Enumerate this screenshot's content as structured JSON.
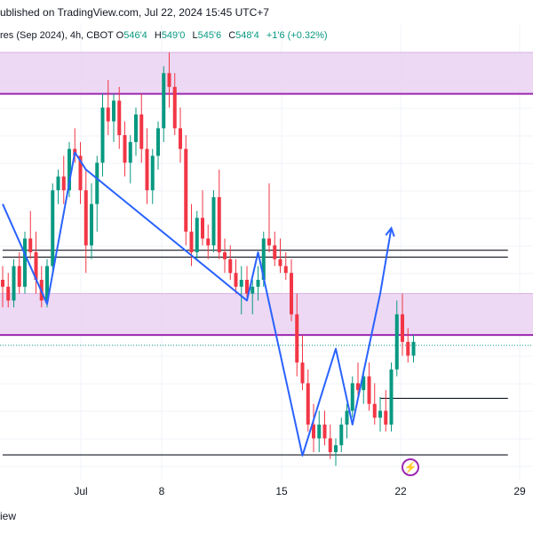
{
  "header": {
    "published_text": "ublished on TradingView.com, Jul 22, 2024 15:45 UTC+7"
  },
  "legend": {
    "symbol_text": "res (Sep 2024), 4h, CBOT",
    "open_label": "O",
    "open_value": "546'4",
    "high_label": "H",
    "high_value": "549'0",
    "low_label": "L",
    "low_value": "545'6",
    "close_label": "C",
    "close_value": "548'4",
    "change": "+1'6 (+0.32%)"
  },
  "footer": {
    "partial_text": "iew"
  },
  "colors": {
    "up": "#089981",
    "down": "#f23645",
    "zone_fill": "#e8d0f0",
    "zone_line": "#9c27b0",
    "wave": "#2962ff",
    "level_line": "#131722",
    "dotted": "#089981"
  },
  "icons": {
    "flash": "lightning-icon"
  },
  "chart_data": {
    "type": "candlestick",
    "x_ticks": [
      "Jul",
      "8",
      "15",
      "22",
      "29"
    ],
    "price_range": [
      506,
      572
    ],
    "zones": [
      {
        "from": 562,
        "to": 568
      },
      {
        "from": 527,
        "to": 533
      }
    ],
    "levels": [
      {
        "price": 539.3,
        "from_index": 0,
        "to_index": 91
      },
      {
        "price": 538.3,
        "from_index": 0,
        "to_index": 91
      },
      {
        "price": 517.8,
        "from_index": 68,
        "to_index": 91
      },
      {
        "price": 509.6,
        "from_index": 0,
        "to_index": 91
      }
    ],
    "last_price_line": 525.5,
    "wave_points": [
      {
        "i": 0,
        "p": 546
      },
      {
        "i": 8,
        "p": 531.5
      },
      {
        "i": 13,
        "p": 553.5
      },
      {
        "i": 15,
        "p": 551
      },
      {
        "i": 44,
        "p": 532
      },
      {
        "i": 46,
        "p": 539
      },
      {
        "i": 54,
        "p": 509.5
      },
      {
        "i": 60,
        "p": 525
      },
      {
        "i": 63,
        "p": 514
      },
      {
        "i": 68,
        "p": 533
      },
      {
        "i": 70,
        "p": 542.5
      }
    ],
    "candles": [
      {
        "o": 535,
        "h": 537,
        "l": 531,
        "c": 534
      },
      {
        "o": 534,
        "h": 536,
        "l": 531,
        "c": 532
      },
      {
        "o": 532,
        "h": 538,
        "l": 531,
        "c": 537
      },
      {
        "o": 537,
        "h": 539,
        "l": 533,
        "c": 534
      },
      {
        "o": 534,
        "h": 542,
        "l": 533,
        "c": 541
      },
      {
        "o": 541,
        "h": 545,
        "l": 538,
        "c": 539
      },
      {
        "o": 539,
        "h": 542,
        "l": 533,
        "c": 535
      },
      {
        "o": 535,
        "h": 537,
        "l": 531,
        "c": 532
      },
      {
        "o": 532,
        "h": 538,
        "l": 531,
        "c": 537
      },
      {
        "o": 537,
        "h": 549,
        "l": 536,
        "c": 548
      },
      {
        "o": 548,
        "h": 551,
        "l": 546,
        "c": 550
      },
      {
        "o": 550,
        "h": 553,
        "l": 546,
        "c": 548
      },
      {
        "o": 548,
        "h": 555,
        "l": 547,
        "c": 554
      },
      {
        "o": 554,
        "h": 557,
        "l": 552,
        "c": 553
      },
      {
        "o": 553,
        "h": 555,
        "l": 546,
        "c": 548
      },
      {
        "o": 548,
        "h": 551,
        "l": 536,
        "c": 540
      },
      {
        "o": 540,
        "h": 549,
        "l": 538,
        "c": 546
      },
      {
        "o": 546,
        "h": 553,
        "l": 542,
        "c": 552
      },
      {
        "o": 552,
        "h": 562,
        "l": 550,
        "c": 560
      },
      {
        "o": 560,
        "h": 564,
        "l": 556,
        "c": 558
      },
      {
        "o": 558,
        "h": 562,
        "l": 555,
        "c": 561
      },
      {
        "o": 561,
        "h": 563,
        "l": 554,
        "c": 556
      },
      {
        "o": 556,
        "h": 558,
        "l": 550,
        "c": 552
      },
      {
        "o": 552,
        "h": 556,
        "l": 549,
        "c": 555
      },
      {
        "o": 555,
        "h": 560,
        "l": 553,
        "c": 559
      },
      {
        "o": 559,
        "h": 562,
        "l": 552,
        "c": 554
      },
      {
        "o": 554,
        "h": 557,
        "l": 546,
        "c": 548
      },
      {
        "o": 548,
        "h": 554,
        "l": 546,
        "c": 553
      },
      {
        "o": 553,
        "h": 558,
        "l": 551,
        "c": 557
      },
      {
        "o": 557,
        "h": 566,
        "l": 555,
        "c": 565
      },
      {
        "o": 565,
        "h": 568,
        "l": 560,
        "c": 563
      },
      {
        "o": 563,
        "h": 565,
        "l": 556,
        "c": 557
      },
      {
        "o": 557,
        "h": 560,
        "l": 552,
        "c": 554
      },
      {
        "o": 554,
        "h": 556,
        "l": 540,
        "c": 542
      },
      {
        "o": 542,
        "h": 546,
        "l": 537,
        "c": 539
      },
      {
        "o": 539,
        "h": 545,
        "l": 538,
        "c": 544
      },
      {
        "o": 544,
        "h": 548,
        "l": 540,
        "c": 541
      },
      {
        "o": 541,
        "h": 543,
        "l": 538,
        "c": 540
      },
      {
        "o": 540,
        "h": 548,
        "l": 539,
        "c": 547
      },
      {
        "o": 547,
        "h": 551,
        "l": 538,
        "c": 539
      },
      {
        "o": 539,
        "h": 541,
        "l": 536,
        "c": 538
      },
      {
        "o": 538,
        "h": 540,
        "l": 535,
        "c": 536
      },
      {
        "o": 536,
        "h": 538,
        "l": 533,
        "c": 534
      },
      {
        "o": 534,
        "h": 537,
        "l": 530,
        "c": 535
      },
      {
        "o": 535,
        "h": 537,
        "l": 532,
        "c": 533
      },
      {
        "o": 533,
        "h": 535,
        "l": 530,
        "c": 534
      },
      {
        "o": 534,
        "h": 537,
        "l": 532,
        "c": 535
      },
      {
        "o": 535,
        "h": 542,
        "l": 534,
        "c": 541
      },
      {
        "o": 541,
        "h": 549,
        "l": 539,
        "c": 540
      },
      {
        "o": 540,
        "h": 542,
        "l": 537,
        "c": 538
      },
      {
        "o": 538,
        "h": 541,
        "l": 536,
        "c": 537
      },
      {
        "o": 537,
        "h": 539,
        "l": 535,
        "c": 536
      },
      {
        "o": 536,
        "h": 538,
        "l": 529,
        "c": 530
      },
      {
        "o": 530,
        "h": 533,
        "l": 521,
        "c": 523
      },
      {
        "o": 523,
        "h": 527,
        "l": 519,
        "c": 520
      },
      {
        "o": 520,
        "h": 522,
        "l": 513,
        "c": 514
      },
      {
        "o": 514,
        "h": 517,
        "l": 510,
        "c": 512
      },
      {
        "o": 512,
        "h": 516,
        "l": 510,
        "c": 514
      },
      {
        "o": 514,
        "h": 516,
        "l": 511,
        "c": 512
      },
      {
        "o": 512,
        "h": 514,
        "l": 509,
        "c": 510
      },
      {
        "o": 510,
        "h": 512,
        "l": 508,
        "c": 511
      },
      {
        "o": 511,
        "h": 515,
        "l": 510,
        "c": 514
      },
      {
        "o": 514,
        "h": 517,
        "l": 512,
        "c": 516
      },
      {
        "o": 516,
        "h": 521,
        "l": 515,
        "c": 520
      },
      {
        "o": 520,
        "h": 523,
        "l": 518,
        "c": 519
      },
      {
        "o": 519,
        "h": 522,
        "l": 517,
        "c": 521
      },
      {
        "o": 521,
        "h": 523,
        "l": 516,
        "c": 517
      },
      {
        "o": 517,
        "h": 520,
        "l": 514,
        "c": 515
      },
      {
        "o": 515,
        "h": 518,
        "l": 513,
        "c": 516
      },
      {
        "o": 516,
        "h": 519,
        "l": 513,
        "c": 514
      },
      {
        "o": 514,
        "h": 523,
        "l": 513,
        "c": 522
      },
      {
        "o": 522,
        "h": 532,
        "l": 521,
        "c": 530
      },
      {
        "o": 530,
        "h": 533,
        "l": 524,
        "c": 526
      },
      {
        "o": 526,
        "h": 528,
        "l": 523,
        "c": 524
      },
      {
        "o": 524,
        "h": 527,
        "l": 523,
        "c": 526
      }
    ]
  }
}
